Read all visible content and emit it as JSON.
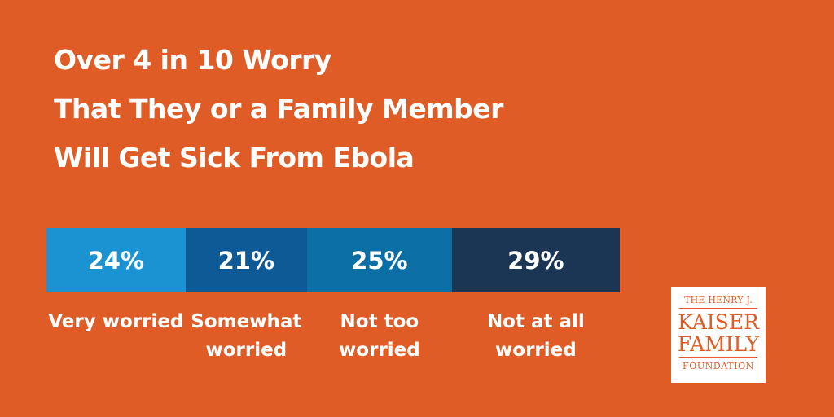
{
  "title": {
    "line1": "Over 4 in 10 Worry",
    "line2": "That They or a Family Member",
    "line3": "Will Get Sick From Ebola"
  },
  "logo": {
    "line1": "THE HENRY J.",
    "line2": "KAISER",
    "line3": "FAMILY",
    "line4": "FOUNDATION"
  },
  "colors": {
    "background": "#e05c27",
    "very_worried": "#1b92d1",
    "somewhat_worried": "#0d5a96",
    "not_too_worried": "#0b6fa6",
    "not_at_all_worried": "#1b3555"
  },
  "chart_data": {
    "type": "bar",
    "orientation": "horizontal-stacked",
    "title": "Over 4 in 10 Worry That They or a Family Member Will Get Sick From Ebola",
    "categories": [
      "Very worried",
      "Somewhat worried",
      "Not too worried",
      "Not at all worried"
    ],
    "values": [
      24,
      21,
      25,
      29
    ],
    "value_labels": [
      "24%",
      "21%",
      "25%",
      "29%"
    ],
    "colors": [
      "#1b92d1",
      "#0d5a96",
      "#0b6fa6",
      "#1b3555"
    ],
    "unit": "%",
    "grid": false,
    "legend": "below each segment"
  }
}
